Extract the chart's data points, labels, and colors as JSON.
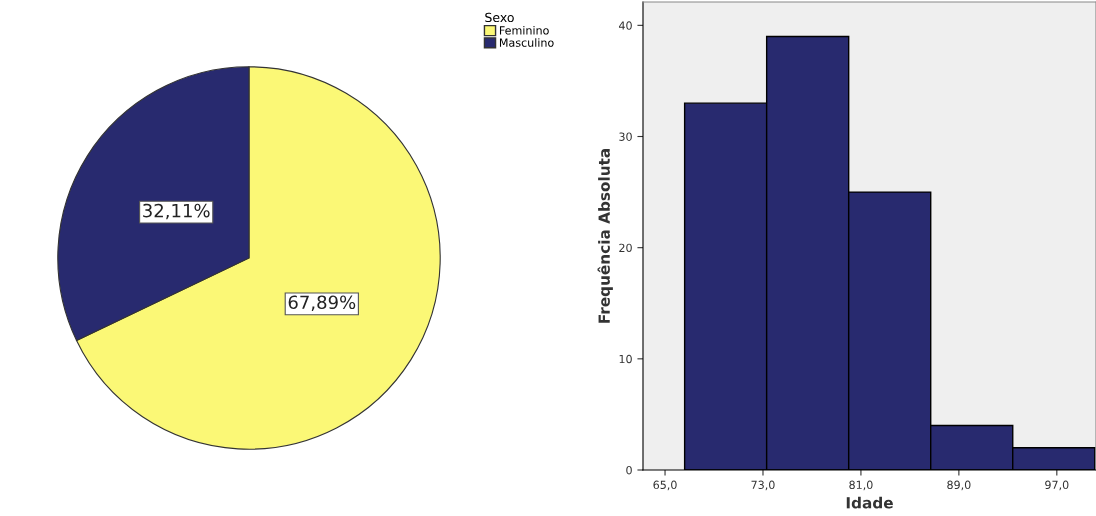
{
  "chart_data": [
    {
      "type": "pie",
      "legend_title": "Sexo",
      "categories": [
        "Feminino",
        "Masculino"
      ],
      "values": [
        67.89,
        32.11
      ],
      "colors": [
        "#fbf876",
        "#282a6f"
      ],
      "value_labels": [
        "67,89%",
        "32,11%"
      ],
      "legend": "top right"
    },
    {
      "type": "histogram",
      "xlabel": "Idade",
      "ylabel": "Frequência Absoluta",
      "bins": [
        66.6,
        73.3,
        80.0,
        86.7,
        93.4,
        100.1
      ],
      "values": [
        33,
        39,
        25,
        4,
        2
      ],
      "color": "#282a6f",
      "xlim": [
        63.2,
        100.2
      ],
      "ylim": [
        0,
        42.1
      ],
      "xticks": [
        {
          "value": 65,
          "label": "65,0"
        },
        {
          "value": 73,
          "label": "73,0"
        },
        {
          "value": 81,
          "label": "81,0"
        },
        {
          "value": 89,
          "label": "89,0"
        },
        {
          "value": 97,
          "label": "97,0"
        }
      ],
      "yticks": [
        0,
        10,
        20,
        30,
        40
      ],
      "grid": false
    }
  ]
}
